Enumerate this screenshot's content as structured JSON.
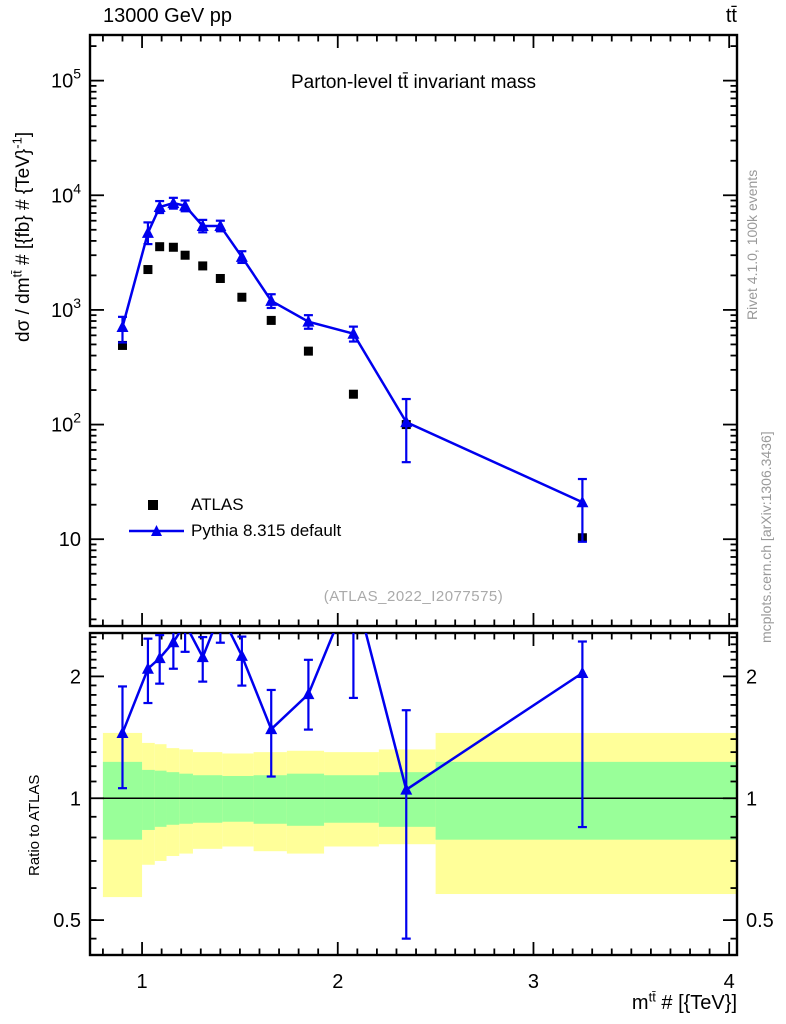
{
  "header": {
    "left": "13000 GeV pp",
    "right": "tt̄"
  },
  "side_notes": {
    "top": "Rivet 4.1.0,  100k events",
    "bottom": "mcplots.cern.ch [arXiv:1306.3436]"
  },
  "watermark": "(ATLAS_2022_I2077575)",
  "chart_data": {
    "type": "line",
    "title": "Parton-level tt̄ invariant mass",
    "xlabel": {
      "p1": "m",
      "sup1": "tt̄",
      "p2": " # [{TeV}]"
    },
    "ylabel": {
      "p1": "dσ / dm",
      "sup1": "tt̄",
      "p2": " # [{fb} # {TeV}",
      "sup2": "-1",
      "p3": "]"
    },
    "ratio_ylabel": "Ratio to ATLAS",
    "xlim": [
      0.734,
      4.04
    ],
    "main_ylim": [
      1.75,
      250000
    ],
    "ratio_ylim": [
      0.41,
      2.56
    ],
    "grid": false,
    "legend_position": "lower-left-of-main-panel",
    "x_major_ticks": [
      1,
      2,
      3,
      4
    ],
    "x_tick_labels": [
      "1",
      "2",
      "3",
      "4"
    ],
    "x_minor_step": 0.1,
    "main_y_tick_labels": [
      {
        "value": 100000,
        "base": "10",
        "exp": "5"
      },
      {
        "value": 10000,
        "base": "10",
        "exp": "4"
      },
      {
        "value": 1000,
        "base": "10",
        "exp": "3"
      },
      {
        "value": 100,
        "base": "10",
        "exp": "2"
      },
      {
        "value": 10,
        "base": "10",
        "exp": ""
      }
    ],
    "ratio_tick_labels": [
      {
        "value": 2,
        "label": "2"
      },
      {
        "value": 1,
        "label": "1"
      },
      {
        "value": 0.5,
        "label": "0.5"
      }
    ],
    "ratio_minor_ticks": [
      0.45,
      0.5,
      0.6,
      0.7,
      0.8,
      0.9,
      1.1,
      1.2,
      1.3,
      1.4,
      1.5,
      1.6,
      1.7,
      1.8,
      1.9,
      2.1,
      2.2,
      2.3,
      2.4,
      2.5
    ],
    "ratio_reference": 1,
    "x": [
      0.9,
      1.03,
      1.09,
      1.16,
      1.22,
      1.31,
      1.4,
      1.51,
      1.66,
      1.85,
      2.08,
      2.35,
      3.25
    ],
    "series": [
      {
        "name": "ATLAS",
        "marker": "square",
        "color": "#000000",
        "values": [
          490,
          2250,
          3560,
          3520,
          3000,
          2420,
          1880,
          1290,
          810,
          437,
          184,
          100,
          10.3
        ]
      },
      {
        "name": "Pythia 8.315 default",
        "marker": "triangle",
        "color": "#0000ee",
        "values": [
          710,
          4700,
          7900,
          8550,
          8100,
          5400,
          5400,
          2900,
          1200,
          790,
          620,
          105,
          21
        ],
        "err_up": [
          160,
          1100,
          1000,
          950,
          900,
          700,
          600,
          350,
          170,
          110,
          95,
          62,
          12.5
        ],
        "err_dn": [
          190,
          950,
          900,
          900,
          850,
          650,
          550,
          330,
          160,
          105,
          90,
          58,
          11.5
        ],
        "ratio_err_up": [
          0.44,
          0.39,
          0.31,
          0.37,
          0.4,
          0.27,
          0.45,
          0.26,
          0.37,
          0.39,
          1.2,
          0.6,
          0.4
        ],
        "ratio_err_dn": [
          0.39,
          0.37,
          0.3,
          0.34,
          0.4,
          0.29,
          0.45,
          0.35,
          0.35,
          0.33,
          1.6,
          0.6,
          1.19
        ]
      }
    ],
    "legend": [
      {
        "label": "ATLAS"
      },
      {
        "label": "Pythia 8.315 default"
      }
    ],
    "bands": {
      "outer_color": "#ffff99",
      "inner_color": "#99ff99",
      "bins": [
        {
          "x0": 0.8,
          "x1": 1.0,
          "outer": [
            0.57,
            1.45
          ],
          "inner": [
            0.79,
            1.23
          ]
        },
        {
          "x0": 1.0,
          "x1": 1.065,
          "outer": [
            0.685,
            1.37
          ],
          "inner": [
            0.835,
            1.175
          ]
        },
        {
          "x0": 1.065,
          "x1": 1.125,
          "outer": [
            0.7,
            1.36
          ],
          "inner": [
            0.85,
            1.17
          ]
        },
        {
          "x0": 1.125,
          "x1": 1.19,
          "outer": [
            0.72,
            1.33
          ],
          "inner": [
            0.86,
            1.16
          ]
        },
        {
          "x0": 1.19,
          "x1": 1.26,
          "outer": [
            0.73,
            1.32
          ],
          "inner": [
            0.865,
            1.15
          ]
        },
        {
          "x0": 1.26,
          "x1": 1.41,
          "outer": [
            0.75,
            1.3
          ],
          "inner": [
            0.87,
            1.14
          ]
        },
        {
          "x0": 1.41,
          "x1": 1.57,
          "outer": [
            0.76,
            1.29
          ],
          "inner": [
            0.875,
            1.135
          ]
        },
        {
          "x0": 1.57,
          "x1": 1.74,
          "outer": [
            0.74,
            1.3
          ],
          "inner": [
            0.865,
            1.14
          ]
        },
        {
          "x0": 1.74,
          "x1": 1.93,
          "outer": [
            0.73,
            1.31
          ],
          "inner": [
            0.855,
            1.15
          ]
        },
        {
          "x0": 1.93,
          "x1": 2.21,
          "outer": [
            0.76,
            1.3
          ],
          "inner": [
            0.87,
            1.14
          ]
        },
        {
          "x0": 2.21,
          "x1": 2.5,
          "outer": [
            0.77,
            1.32
          ],
          "inner": [
            0.85,
            1.16
          ]
        },
        {
          "x0": 2.5,
          "x1": 4.04,
          "outer": [
            0.58,
            1.45
          ],
          "inner": [
            0.79,
            1.23
          ]
        }
      ]
    }
  }
}
